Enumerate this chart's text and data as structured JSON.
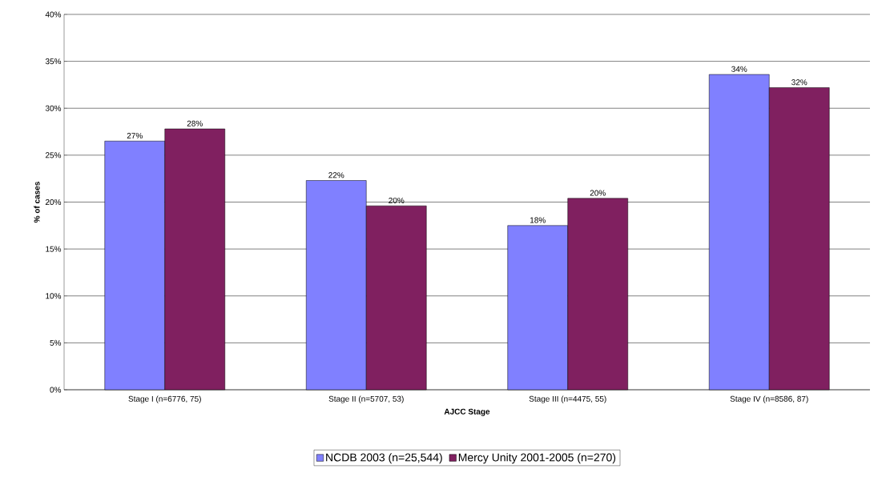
{
  "chart_data": {
    "type": "bar",
    "xlabel": "AJCC Stage",
    "ylabel": "% of cases",
    "categories": [
      "Stage I (n=6776, 75)",
      "Stage II (n=5707, 53)",
      "Stage III (n=4475, 55)",
      "Stage IV (n=8586, 87)"
    ],
    "series": [
      {
        "name": "NCDB 2003 (n=25,544)",
        "color": "#8080ff",
        "values": [
          26.5,
          22.3,
          17.5,
          33.6
        ],
        "value_labels": [
          "27%",
          "22%",
          "18%",
          "34%"
        ]
      },
      {
        "name": "Mercy Unity 2001-2005 (n=270)",
        "color": "#802060",
        "values": [
          27.8,
          19.6,
          20.4,
          32.2
        ],
        "value_labels": [
          "28%",
          "20%",
          "20%",
          "32%"
        ]
      }
    ],
    "ylim": [
      0,
      40
    ],
    "yticks": [
      {
        "value": 0,
        "label": "0%"
      },
      {
        "value": 5,
        "label": "5%"
      },
      {
        "value": 10,
        "label": "10%"
      },
      {
        "value": 15,
        "label": "15%"
      },
      {
        "value": 20,
        "label": "20%"
      },
      {
        "value": 25,
        "label": "25%"
      },
      {
        "value": 30,
        "label": "30%"
      },
      {
        "value": 35,
        "label": "35%"
      },
      {
        "value": 40,
        "label": "40%"
      }
    ],
    "grid": "y",
    "legend": "bottom"
  }
}
